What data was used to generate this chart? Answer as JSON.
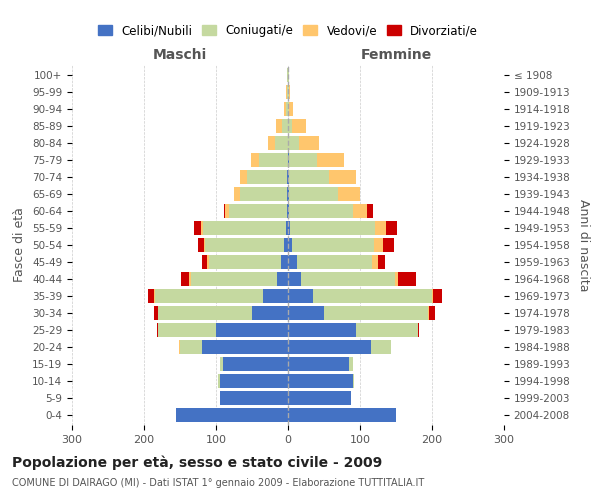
{
  "age_groups": [
    "0-4",
    "5-9",
    "10-14",
    "15-19",
    "20-24",
    "25-29",
    "30-34",
    "35-39",
    "40-44",
    "45-49",
    "50-54",
    "55-59",
    "60-64",
    "65-69",
    "70-74",
    "75-79",
    "80-84",
    "85-89",
    "90-94",
    "95-99",
    "100+"
  ],
  "birth_years": [
    "2004-2008",
    "1999-2003",
    "1994-1998",
    "1989-1993",
    "1984-1988",
    "1979-1983",
    "1974-1978",
    "1969-1973",
    "1964-1968",
    "1959-1963",
    "1954-1958",
    "1949-1953",
    "1944-1948",
    "1939-1943",
    "1934-1938",
    "1929-1933",
    "1924-1928",
    "1919-1923",
    "1914-1918",
    "1909-1913",
    "≤ 1908"
  ],
  "male_celibi": [
    155,
    95,
    95,
    90,
    120,
    100,
    50,
    35,
    15,
    10,
    5,
    3,
    2,
    2,
    2,
    0,
    0,
    0,
    0,
    0,
    0
  ],
  "male_coniugati": [
    0,
    0,
    2,
    5,
    30,
    80,
    130,
    150,
    120,
    100,
    110,
    115,
    80,
    65,
    55,
    40,
    18,
    8,
    3,
    2,
    1
  ],
  "male_vedovi": [
    0,
    0,
    0,
    0,
    1,
    0,
    1,
    1,
    2,
    2,
    2,
    3,
    5,
    8,
    10,
    12,
    10,
    8,
    2,
    1,
    0
  ],
  "male_divorziati": [
    0,
    0,
    0,
    0,
    0,
    2,
    5,
    8,
    12,
    8,
    8,
    10,
    2,
    0,
    0,
    0,
    0,
    0,
    0,
    0,
    0
  ],
  "female_celibi": [
    150,
    88,
    90,
    85,
    115,
    95,
    50,
    35,
    18,
    12,
    5,
    3,
    2,
    2,
    2,
    2,
    0,
    0,
    0,
    0,
    0
  ],
  "female_coniugati": [
    0,
    0,
    2,
    5,
    28,
    85,
    145,
    165,
    130,
    105,
    115,
    118,
    88,
    68,
    55,
    38,
    15,
    5,
    2,
    1,
    1
  ],
  "female_vedovi": [
    0,
    0,
    0,
    0,
    0,
    0,
    1,
    2,
    5,
    8,
    12,
    15,
    20,
    30,
    38,
    38,
    28,
    20,
    5,
    2,
    1
  ],
  "female_divorziati": [
    0,
    0,
    0,
    0,
    0,
    2,
    8,
    12,
    25,
    10,
    15,
    15,
    8,
    0,
    0,
    0,
    0,
    0,
    0,
    0,
    0
  ],
  "color_celibi": "#4472c4",
  "color_coniugati": "#c5d9a0",
  "color_vedovi": "#ffc66d",
  "color_divorziati": "#cc0000",
  "title": "Popolazione per età, sesso e stato civile - 2009",
  "subtitle": "COMUNE DI DAIRAGO (MI) - Dati ISTAT 1° gennaio 2009 - Elaborazione TUTTITALIA.IT",
  "xlabel_left": "Maschi",
  "xlabel_right": "Femmine",
  "ylabel_left": "Fasce di età",
  "ylabel_right": "Anni di nascita",
  "xlim": 300,
  "background_color": "#ffffff",
  "grid_color": "#cccccc"
}
